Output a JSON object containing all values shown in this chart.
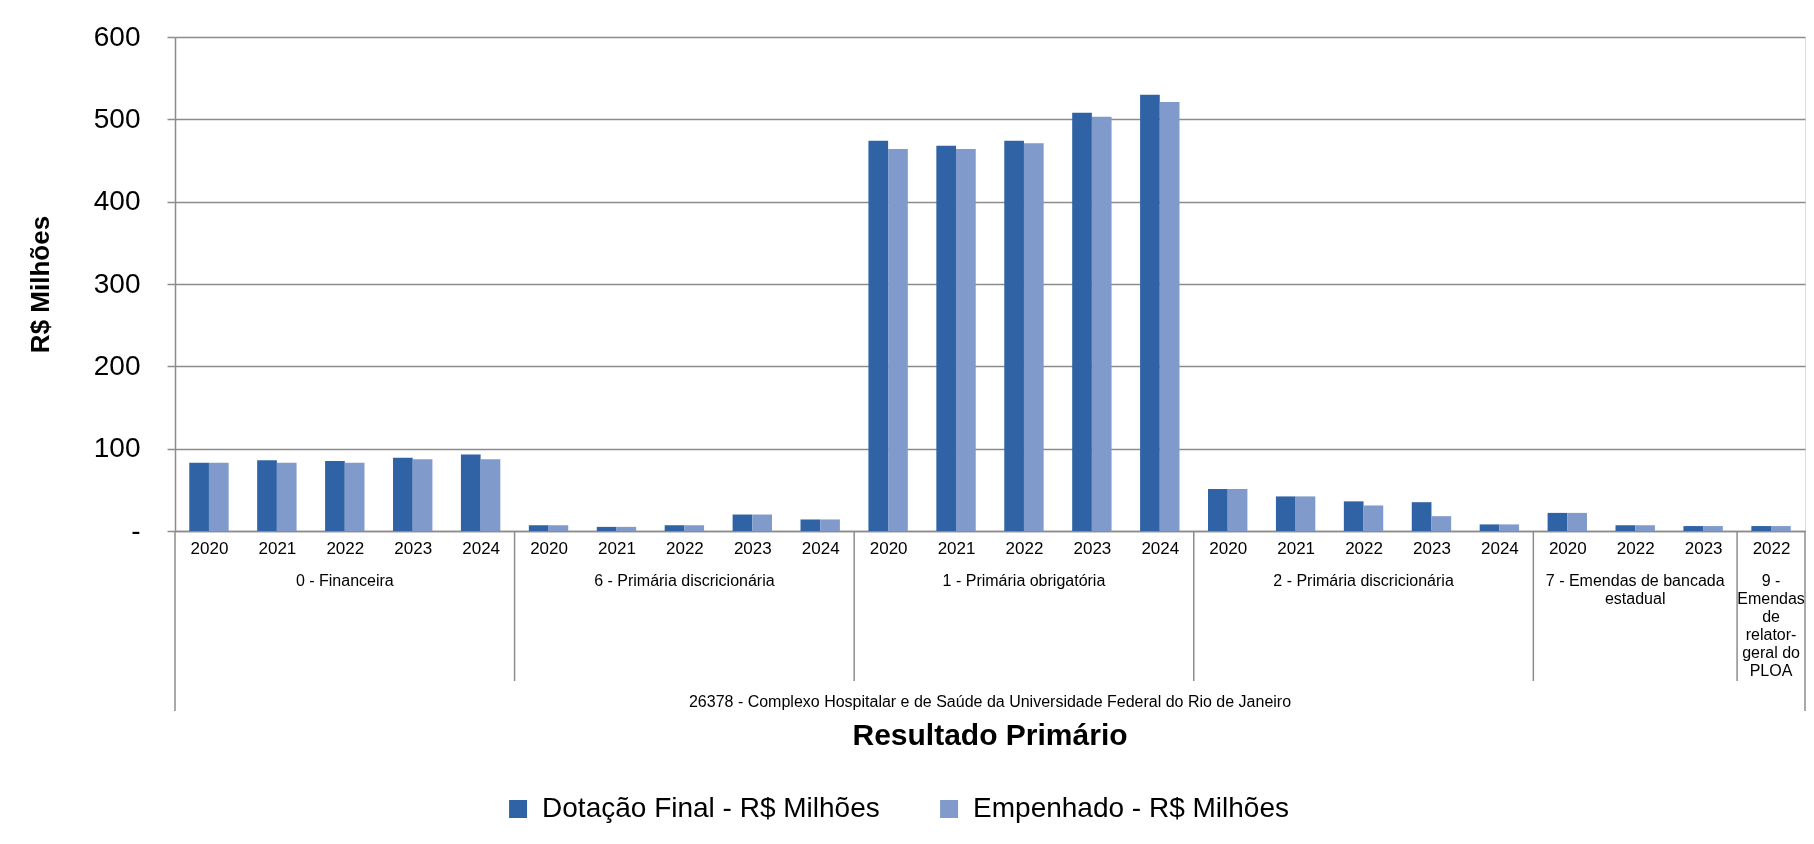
{
  "chart_data": {
    "type": "bar",
    "categories": [
      "2020",
      "2021",
      "2022",
      "2023",
      "2024",
      "2020",
      "2021",
      "2022",
      "2023",
      "2024",
      "2020",
      "2021",
      "2022",
      "2023",
      "2024",
      "2020",
      "2021",
      "2022",
      "2023",
      "2024",
      "2020",
      "2022",
      "2023",
      "2022"
    ],
    "series": [
      {
        "name": "Dotação Final - R$ Milhões",
        "color": "#3063a5",
        "values": [
          83,
          86,
          85,
          89,
          93,
          7,
          5,
          7,
          20,
          14,
          474,
          468,
          474,
          508,
          530,
          51,
          42,
          36,
          35,
          8,
          22,
          7,
          6,
          6
        ]
      },
      {
        "name": "Empenhado - R$ Milhões",
        "color": "#7f9acb",
        "values": [
          83,
          83,
          83,
          87,
          87,
          7,
          5,
          7,
          20,
          14,
          464,
          464,
          471,
          503,
          521,
          51,
          42,
          31,
          18,
          8,
          22,
          7,
          6,
          6
        ]
      }
    ],
    "ylabel": "R$ Milhões",
    "annotations": [
      "0 - Financeira",
      "6 - Primária discricionária",
      "1 - Primária obrigatória",
      "2 - Primária discricionária",
      "7 - Emendas de bancada estadual",
      "9 - Emendas de relator-geral do PLOA",
      "26378 - Complexo Hospitalar e de Saúde da Universidade Federal do Rio de Janeiro",
      "Resultado Primário"
    ],
    "ylim": [
      0,
      600
    ],
    "yticks": [
      {
        "value": 0,
        "label": "-"
      },
      100,
      200,
      300,
      400,
      500,
      600
    ],
    "grid": "y",
    "legend": "bottom"
  }
}
